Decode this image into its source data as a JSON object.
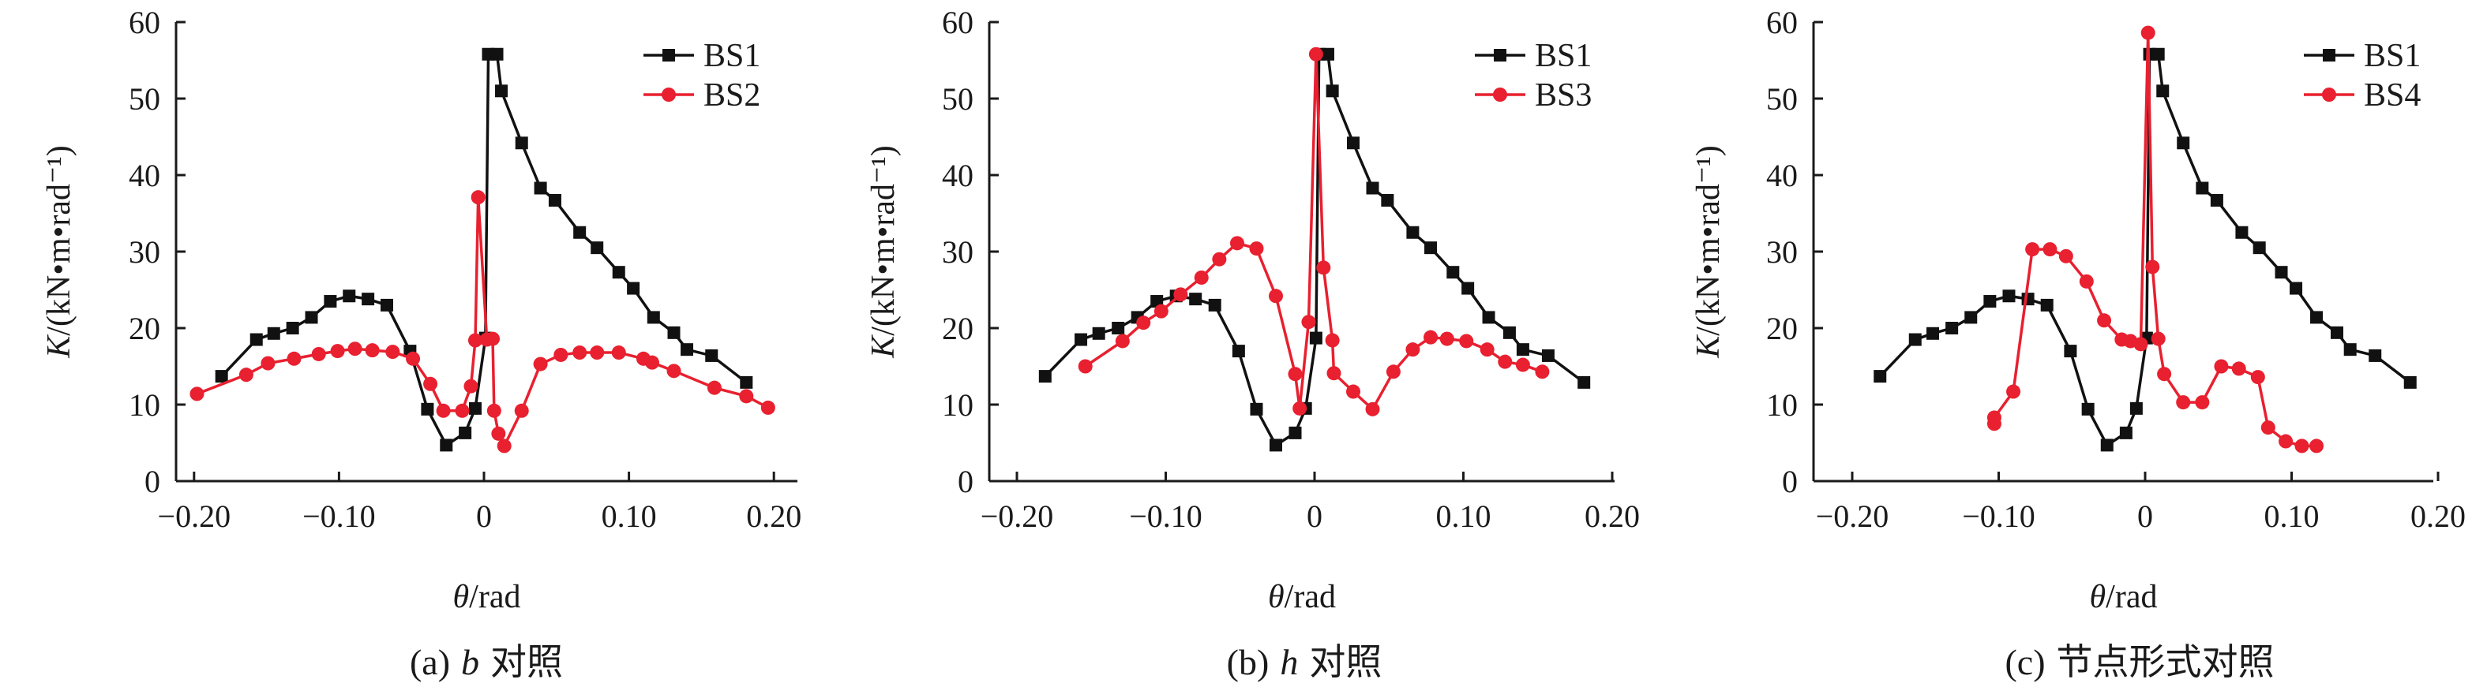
{
  "colors": {
    "BS1": "#111111",
    "BS2": "#e8202f",
    "BS3": "#e8202f",
    "BS4": "#e8202f",
    "axis": "#1a1a1a"
  },
  "chart_data": [
    {
      "type": "line",
      "caption_label": "(a)",
      "caption_var": "b",
      "caption_rest": "对照",
      "xlabel_var": "θ",
      "xlabel_unit": "/rad",
      "ylabel_var": "K",
      "ylabel_unit": "/(kN•m•rad⁻¹)",
      "xlim": [
        -0.22,
        0.22
      ],
      "ylim": [
        0,
        60
      ],
      "xticks": [
        -0.2,
        -0.1,
        0,
        0.1,
        0.2
      ],
      "xtick_labels": [
        "−0.20",
        "−0.10",
        "0",
        "0.10",
        "0.20"
      ],
      "yticks": [
        0,
        10,
        20,
        30,
        40,
        50,
        60
      ],
      "ytick_labels": [
        "0",
        "10",
        "20",
        "30",
        "40",
        "50",
        "60"
      ],
      "legend_position": "top-right",
      "series": [
        {
          "name": "BS1",
          "marker": "square",
          "color": "#111111",
          "points": [
            [
              -0.181,
              13.7
            ],
            [
              -0.157,
              18.5
            ],
            [
              -0.145,
              19.3
            ],
            [
              -0.132,
              20.0
            ],
            [
              -0.119,
              21.4
            ],
            [
              -0.106,
              23.5
            ],
            [
              -0.093,
              24.2
            ],
            [
              -0.08,
              23.8
            ],
            [
              -0.067,
              23.0
            ],
            [
              -0.051,
              17.0
            ],
            [
              -0.039,
              9.4
            ],
            [
              -0.026,
              4.7
            ],
            [
              -0.013,
              6.3
            ],
            [
              -0.006,
              9.5
            ],
            [
              0.001,
              18.7
            ],
            [
              0.003,
              55.8
            ],
            [
              0.009,
              55.8
            ],
            [
              0.012,
              51.0
            ],
            [
              0.026,
              44.2
            ],
            [
              0.039,
              38.3
            ],
            [
              0.049,
              36.7
            ],
            [
              0.066,
              32.5
            ],
            [
              0.078,
              30.5
            ],
            [
              0.093,
              27.3
            ],
            [
              0.103,
              25.2
            ],
            [
              0.117,
              21.4
            ],
            [
              0.131,
              19.4
            ],
            [
              0.14,
              17.2
            ],
            [
              0.157,
              16.4
            ],
            [
              0.181,
              12.9
            ]
          ]
        },
        {
          "name": "BS2",
          "marker": "circle",
          "color": "#e8202f",
          "points": [
            [
              -0.198,
              11.4
            ],
            [
              -0.164,
              13.9
            ],
            [
              -0.149,
              15.4
            ],
            [
              -0.131,
              16.0
            ],
            [
              -0.114,
              16.6
            ],
            [
              -0.101,
              17.0
            ],
            [
              -0.089,
              17.3
            ],
            [
              -0.077,
              17.1
            ],
            [
              -0.063,
              16.9
            ],
            [
              -0.049,
              16.0
            ],
            [
              -0.037,
              12.7
            ],
            [
              -0.028,
              9.2
            ],
            [
              -0.015,
              9.2
            ],
            [
              -0.009,
              12.4
            ],
            [
              -0.006,
              18.4
            ],
            [
              -0.004,
              37.1
            ],
            [
              0.002,
              18.5
            ],
            [
              0.006,
              18.6
            ],
            [
              0.007,
              9.2
            ],
            [
              0.01,
              6.2
            ],
            [
              0.014,
              4.6
            ],
            [
              0.026,
              9.2
            ],
            [
              0.039,
              15.3
            ],
            [
              0.053,
              16.5
            ],
            [
              0.066,
              16.8
            ],
            [
              0.078,
              16.8
            ],
            [
              0.093,
              16.8
            ],
            [
              0.11,
              16.0
            ],
            [
              0.116,
              15.5
            ],
            [
              0.131,
              14.4
            ],
            [
              0.159,
              12.2
            ],
            [
              0.181,
              11.1
            ],
            [
              0.196,
              9.6
            ]
          ]
        }
      ]
    },
    {
      "type": "line",
      "caption_label": "(b)",
      "caption_var": "h",
      "caption_rest": "对照",
      "xlabel_var": "θ",
      "xlabel_unit": "/rad",
      "ylabel_var": "K",
      "ylabel_unit": "/(kN•m•rad⁻¹)",
      "xlim": [
        -0.2,
        0.2
      ],
      "ylim": [
        0,
        60
      ],
      "xticks": [
        -0.2,
        -0.1,
        0,
        0.1,
        0.2
      ],
      "xtick_labels": [
        "−0.20",
        "−0.10",
        "0",
        "0.10",
        "0.20"
      ],
      "yticks": [
        0,
        10,
        20,
        30,
        40,
        50,
        60
      ],
      "ytick_labels": [
        "0",
        "10",
        "20",
        "30",
        "40",
        "50",
        "60"
      ],
      "legend_position": "top-right",
      "series": [
        {
          "name": "BS1",
          "marker": "square",
          "color": "#111111",
          "points": [
            [
              -0.181,
              13.7
            ],
            [
              -0.157,
              18.5
            ],
            [
              -0.145,
              19.3
            ],
            [
              -0.132,
              20.0
            ],
            [
              -0.119,
              21.4
            ],
            [
              -0.106,
              23.5
            ],
            [
              -0.093,
              24.2
            ],
            [
              -0.08,
              23.8
            ],
            [
              -0.067,
              23.0
            ],
            [
              -0.051,
              17.0
            ],
            [
              -0.039,
              9.4
            ],
            [
              -0.026,
              4.7
            ],
            [
              -0.013,
              6.3
            ],
            [
              -0.006,
              9.5
            ],
            [
              0.001,
              18.7
            ],
            [
              0.003,
              55.8
            ],
            [
              0.009,
              55.8
            ],
            [
              0.012,
              51.0
            ],
            [
              0.026,
              44.2
            ],
            [
              0.039,
              38.3
            ],
            [
              0.049,
              36.7
            ],
            [
              0.066,
              32.5
            ],
            [
              0.078,
              30.5
            ],
            [
              0.093,
              27.3
            ],
            [
              0.103,
              25.2
            ],
            [
              0.117,
              21.4
            ],
            [
              0.131,
              19.4
            ],
            [
              0.14,
              17.2
            ],
            [
              0.157,
              16.4
            ],
            [
              0.181,
              12.9
            ]
          ]
        },
        {
          "name": "BS3",
          "marker": "circle",
          "color": "#e8202f",
          "points": [
            [
              -0.154,
              15.0
            ],
            [
              -0.129,
              18.3
            ],
            [
              -0.115,
              20.7
            ],
            [
              -0.103,
              22.2
            ],
            [
              -0.09,
              24.4
            ],
            [
              -0.076,
              26.6
            ],
            [
              -0.064,
              29.0
            ],
            [
              -0.052,
              31.1
            ],
            [
              -0.039,
              30.4
            ],
            [
              -0.026,
              24.2
            ],
            [
              -0.013,
              14.0
            ],
            [
              -0.01,
              9.5
            ],
            [
              -0.004,
              20.8
            ],
            [
              0.001,
              55.8
            ],
            [
              0.006,
              27.9
            ],
            [
              0.012,
              18.4
            ],
            [
              0.013,
              14.1
            ],
            [
              0.026,
              11.7
            ],
            [
              0.039,
              9.4
            ],
            [
              0.053,
              14.3
            ],
            [
              0.066,
              17.2
            ],
            [
              0.078,
              18.8
            ],
            [
              0.089,
              18.6
            ],
            [
              0.102,
              18.3
            ],
            [
              0.116,
              17.2
            ],
            [
              0.128,
              15.6
            ],
            [
              0.14,
              15.2
            ],
            [
              0.153,
              14.3
            ]
          ]
        }
      ]
    },
    {
      "type": "line",
      "caption_label": "(c)",
      "caption_var": "",
      "caption_rest": "节点形式对照",
      "xlabel_var": "θ",
      "xlabel_unit": "/rad",
      "ylabel_var": "K",
      "ylabel_unit": "/(kN•m•rad⁻¹)",
      "xlim": [
        -0.2,
        0.2
      ],
      "ylim": [
        0,
        60
      ],
      "xticks": [
        -0.2,
        -0.1,
        0,
        0.1,
        0.2
      ],
      "xtick_labels": [
        "−0.20",
        "−0.10",
        "0",
        "0.10",
        "0.20"
      ],
      "yticks": [
        0,
        10,
        20,
        30,
        40,
        50,
        60
      ],
      "ytick_labels": [
        "0",
        "10",
        "20",
        "30",
        "40",
        "50",
        "60"
      ],
      "legend_position": "top-right",
      "series": [
        {
          "name": "BS1",
          "marker": "square",
          "color": "#111111",
          "points": [
            [
              -0.181,
              13.7
            ],
            [
              -0.157,
              18.5
            ],
            [
              -0.145,
              19.3
            ],
            [
              -0.132,
              20.0
            ],
            [
              -0.119,
              21.4
            ],
            [
              -0.106,
              23.5
            ],
            [
              -0.093,
              24.2
            ],
            [
              -0.08,
              23.8
            ],
            [
              -0.067,
              23.0
            ],
            [
              -0.051,
              17.0
            ],
            [
              -0.039,
              9.4
            ],
            [
              -0.026,
              4.7
            ],
            [
              -0.013,
              6.3
            ],
            [
              -0.006,
              9.5
            ],
            [
              0.001,
              18.7
            ],
            [
              0.003,
              55.8
            ],
            [
              0.009,
              55.8
            ],
            [
              0.012,
              51.0
            ],
            [
              0.026,
              44.2
            ],
            [
              0.039,
              38.3
            ],
            [
              0.049,
              36.7
            ],
            [
              0.066,
              32.5
            ],
            [
              0.078,
              30.5
            ],
            [
              0.093,
              27.3
            ],
            [
              0.103,
              25.2
            ],
            [
              0.117,
              21.4
            ],
            [
              0.131,
              19.4
            ],
            [
              0.14,
              17.2
            ],
            [
              0.157,
              16.4
            ],
            [
              0.181,
              12.9
            ]
          ]
        },
        {
          "name": "BS4",
          "marker": "circle",
          "color": "#e8202f",
          "points": [
            [
              -0.103,
              7.5
            ],
            [
              -0.103,
              8.3
            ],
            [
              -0.09,
              11.7
            ],
            [
              -0.077,
              30.3
            ],
            [
              -0.065,
              30.3
            ],
            [
              -0.054,
              29.4
            ],
            [
              -0.04,
              26.1
            ],
            [
              -0.028,
              21.0
            ],
            [
              -0.016,
              18.5
            ],
            [
              -0.01,
              18.3
            ],
            [
              -0.003,
              17.9
            ],
            [
              0.002,
              58.6
            ],
            [
              0.005,
              28.0
            ],
            [
              0.009,
              18.6
            ],
            [
              0.013,
              14.0
            ],
            [
              0.026,
              10.3
            ],
            [
              0.039,
              10.3
            ],
            [
              0.052,
              15.0
            ],
            [
              0.064,
              14.7
            ],
            [
              0.077,
              13.6
            ],
            [
              0.084,
              7.0
            ],
            [
              0.096,
              5.2
            ],
            [
              0.107,
              4.6
            ],
            [
              0.117,
              4.6
            ]
          ]
        }
      ]
    }
  ]
}
